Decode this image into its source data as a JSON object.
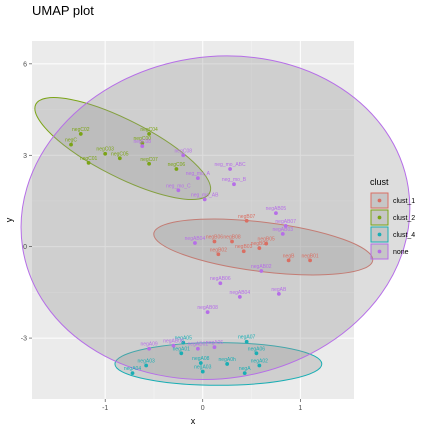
{
  "chart_data": {
    "type": "scatter",
    "title": "UMAP plot",
    "xlabel": "x",
    "ylabel": "y",
    "xlim": [
      -1.75,
      1.55
    ],
    "ylim": [
      -5.0,
      6.75
    ],
    "xticks": [
      -1,
      0,
      1
    ],
    "yticks": [
      -3,
      0,
      3,
      6
    ],
    "grid": true,
    "legend": {
      "title": "clust",
      "position": "right"
    },
    "colors": {
      "clust_1": "#d96f63",
      "clust_2": "#7ba416",
      "clust_4": "#1aaeb4",
      "none": "#b66ee8"
    },
    "series": [
      {
        "name": "clust_1",
        "ellipse": {
          "cx": 0.62,
          "cy": -0.01,
          "rx": 1.13,
          "ry": 0.81,
          "angle_deg": -7
        },
        "points": [
          {
            "x": 0.45,
            "y": 0.85,
            "label": "negB07"
          },
          {
            "x": 0.12,
            "y": 0.17,
            "label": "negB06"
          },
          {
            "x": 0.3,
            "y": 0.17,
            "label": "negB08"
          },
          {
            "x": 0.65,
            "y": 0.1,
            "label": "negB05"
          },
          {
            "x": 0.58,
            "y": -0.05,
            "label": "negB04"
          },
          {
            "x": 0.16,
            "y": -0.25,
            "label": "negB02"
          },
          {
            "x": 0.42,
            "y": -0.15,
            "label": "negB03"
          },
          {
            "x": 0.88,
            "y": -0.45,
            "label": "negB"
          },
          {
            "x": 1.1,
            "y": -0.45,
            "label": "negB01"
          }
        ]
      },
      {
        "name": "clust_2",
        "ellipse": {
          "cx": -0.82,
          "cy": 3.22,
          "rx": 1.0,
          "ry": 0.93,
          "angle_deg": -27
        },
        "points": [
          {
            "x": -1.25,
            "y": 3.7,
            "label": "negC02"
          },
          {
            "x": -0.55,
            "y": 3.7,
            "label": "negC04"
          },
          {
            "x": -1.35,
            "y": 3.35,
            "label": "negC"
          },
          {
            "x": -0.62,
            "y": 3.4,
            "label": "negC00"
          },
          {
            "x": -1.0,
            "y": 3.05,
            "label": "negC03"
          },
          {
            "x": -0.85,
            "y": 2.9,
            "label": "negC05"
          },
          {
            "x": -1.17,
            "y": 2.75,
            "label": "negC01"
          },
          {
            "x": -0.55,
            "y": 2.72,
            "label": "negC07"
          },
          {
            "x": -0.27,
            "y": 2.55,
            "label": "negC06"
          }
        ]
      },
      {
        "name": "clust_4",
        "ellipse": {
          "cx": 0.16,
          "cy": -3.85,
          "rx": 1.06,
          "ry": 0.7,
          "angle_deg": 0
        },
        "points": [
          {
            "x": -0.2,
            "y": -3.15,
            "label": "negA05"
          },
          {
            "x": 0.45,
            "y": -3.12,
            "label": "negA07"
          },
          {
            "x": -0.22,
            "y": -3.5,
            "label": "negA01"
          },
          {
            "x": 0.55,
            "y": -3.5,
            "label": "negA06"
          },
          {
            "x": -0.58,
            "y": -3.9,
            "label": "negA03"
          },
          {
            "x": -0.02,
            "y": -3.82,
            "label": "negA08"
          },
          {
            "x": 0.25,
            "y": -3.85,
            "label": "negA0h"
          },
          {
            "x": 0.58,
            "y": -3.9,
            "label": "negA02"
          },
          {
            "x": -0.72,
            "y": -4.15,
            "label": "negA04"
          },
          {
            "x": 0.0,
            "y": -4.1,
            "label": "negA03"
          },
          {
            "x": 0.43,
            "y": -4.15,
            "label": "negA"
          }
        ]
      },
      {
        "name": "none",
        "ellipse": {
          "cx": 0.13,
          "cy": 0.95,
          "rx": 2.0,
          "ry": 5.28,
          "angle_deg": 9
        },
        "points": [
          {
            "x": -0.2,
            "y": 3.0,
            "label": "negC08"
          },
          {
            "x": -0.62,
            "y": 3.3,
            "label": "negC08"
          },
          {
            "x": 0.28,
            "y": 2.55,
            "label": "neg_mo_ABC"
          },
          {
            "x": -0.05,
            "y": 2.25,
            "label": "neg_mo_A"
          },
          {
            "x": 0.32,
            "y": 2.05,
            "label": "neg_mo_B"
          },
          {
            "x": -0.25,
            "y": 1.85,
            "label": "neg_mo_C"
          },
          {
            "x": 0.02,
            "y": 1.55,
            "label": "neg_mo_AB"
          },
          {
            "x": 0.75,
            "y": 1.1,
            "label": "negAB05"
          },
          {
            "x": 0.85,
            "y": 0.68,
            "label": "negAB07"
          },
          {
            "x": 0.82,
            "y": 0.42,
            "label": "negAB03"
          },
          {
            "x": -0.08,
            "y": 0.12,
            "label": "negAB04"
          },
          {
            "x": 0.6,
            "y": -0.8,
            "label": "negAB02"
          },
          {
            "x": 0.18,
            "y": -1.2,
            "label": "negAB06"
          },
          {
            "x": 0.38,
            "y": -1.65,
            "label": "negAB04"
          },
          {
            "x": 0.78,
            "y": -1.55,
            "label": "negAB"
          },
          {
            "x": 0.05,
            "y": -2.15,
            "label": "negAB08"
          },
          {
            "x": -0.55,
            "y": -3.35,
            "label": "negA09"
          },
          {
            "x": -0.3,
            "y": -3.25,
            "label": "negAB00"
          },
          {
            "x": -0.05,
            "y": -3.35,
            "label": "negAB01"
          },
          {
            "x": 0.12,
            "y": -3.3,
            "label": "negA06"
          }
        ]
      }
    ]
  }
}
